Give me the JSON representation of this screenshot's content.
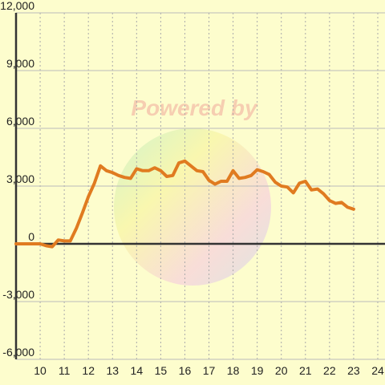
{
  "chart_data": {
    "type": "line",
    "watermark": "Powered by",
    "x": [
      9,
      9.5,
      10,
      10.25,
      10.5,
      10.75,
      11,
      11.25,
      11.5,
      11.75,
      12,
      12.25,
      12.5,
      12.75,
      13,
      13.25,
      13.5,
      13.75,
      14,
      14.25,
      14.5,
      14.75,
      15,
      15.25,
      15.5,
      15.75,
      16,
      16.25,
      16.5,
      16.75,
      17,
      17.25,
      17.5,
      17.75,
      18,
      18.25,
      18.5,
      18.75,
      19,
      19.25,
      19.5,
      19.75,
      20,
      20.25,
      20.5,
      20.75,
      21,
      21.25,
      21.5,
      21.75,
      22,
      22.25,
      22.5,
      22.75,
      23
    ],
    "series": [
      {
        "color": "#e07b20",
        "values": [
          0,
          0,
          0,
          -100,
          -150,
          200,
          150,
          150,
          800,
          1600,
          2450,
          3150,
          4050,
          3800,
          3700,
          3550,
          3450,
          3400,
          3900,
          3800,
          3800,
          3950,
          3800,
          3500,
          3550,
          4200,
          4300,
          4050,
          3800,
          3750,
          3300,
          3100,
          3250,
          3250,
          3800,
          3400,
          3450,
          3550,
          3850,
          3750,
          3600,
          3200,
          3000,
          2950,
          2650,
          3150,
          3250,
          2800,
          2850,
          2600,
          2250,
          2100,
          2150,
          1900,
          1800
        ]
      }
    ],
    "xlim": [
      9,
      24.3
    ],
    "xticks": [
      10,
      11,
      12,
      13,
      14,
      15,
      16,
      17,
      18,
      19,
      20,
      21,
      22,
      23,
      24
    ],
    "ylim": [
      -6000,
      12000
    ],
    "yticks": [
      {
        "value": -6000,
        "label": "-6,000"
      },
      {
        "value": -3000,
        "label": "-3,000"
      },
      0,
      {
        "value": 3000,
        "label": "3,000"
      },
      {
        "value": 6000,
        "label": "6,000"
      },
      {
        "value": 9000,
        "label": "9,000"
      },
      {
        "value": 12000,
        "label": "12,000"
      }
    ],
    "grid": true
  }
}
